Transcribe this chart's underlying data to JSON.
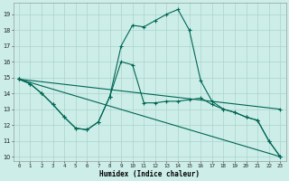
{
  "xlabel": "Humidex (Indice chaleur)",
  "bg_color": "#cdeee8",
  "grid_color": "#aad4cc",
  "line_color": "#006655",
  "xlim": [
    -0.5,
    23.5
  ],
  "ylim": [
    9.7,
    19.7
  ],
  "yticks": [
    10,
    11,
    12,
    13,
    14,
    15,
    16,
    17,
    18,
    19
  ],
  "xticks": [
    0,
    1,
    2,
    3,
    4,
    5,
    6,
    7,
    8,
    9,
    10,
    11,
    12,
    13,
    14,
    15,
    16,
    17,
    18,
    19,
    20,
    21,
    22,
    23
  ],
  "lines": [
    {
      "x": [
        0,
        1,
        2,
        3,
        4,
        5,
        6,
        7,
        8,
        9,
        10,
        11,
        12,
        13,
        14,
        15,
        16,
        17,
        18,
        19,
        20,
        21,
        22,
        23
      ],
      "y": [
        14.9,
        14.6,
        14.0,
        13.3,
        12.5,
        11.8,
        11.7,
        12.2,
        13.8,
        17.0,
        18.3,
        18.2,
        18.6,
        19.0,
        19.3,
        18.0,
        14.8,
        13.5,
        13.0,
        12.8,
        12.5,
        12.3,
        11.0,
        10.0
      ]
    },
    {
      "x": [
        0,
        1,
        2,
        3,
        4,
        5,
        6,
        7,
        8,
        9,
        10,
        11,
        12,
        13,
        14,
        15,
        16,
        17,
        18,
        19,
        20,
        21,
        22,
        23
      ],
      "y": [
        14.9,
        14.6,
        14.0,
        13.3,
        12.5,
        11.8,
        11.7,
        12.2,
        13.8,
        16.0,
        15.8,
        13.4,
        13.4,
        13.5,
        13.5,
        13.6,
        13.7,
        13.3,
        13.0,
        12.8,
        12.5,
        12.3,
        11.0,
        10.0
      ]
    },
    {
      "x": [
        0,
        23
      ],
      "y": [
        14.9,
        13.0
      ]
    },
    {
      "x": [
        0,
        23
      ],
      "y": [
        14.9,
        10.0
      ]
    }
  ]
}
